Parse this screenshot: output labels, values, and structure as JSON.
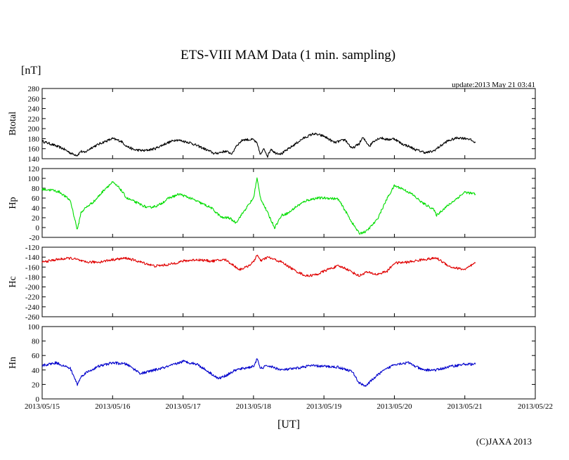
{
  "chart_data": {
    "type": "line",
    "title": "ETS-VIII MAM Data (1 min. sampling)",
    "unit_label": "[nT]",
    "update_text": "update:2013 May 21 03:41",
    "xlabel": "[UT]",
    "copyright": "(C)JAXA 2013",
    "x_range": [
      0,
      7
    ],
    "x_ticks": [
      {
        "x": 0,
        "label": "2013/05/15"
      },
      {
        "x": 1,
        "label": "2013/05/16"
      },
      {
        "x": 2,
        "label": "2013/05/17"
      },
      {
        "x": 3,
        "label": "2013/05/18"
      },
      {
        "x": 4,
        "label": "2013/05/19"
      },
      {
        "x": 5,
        "label": "2013/05/20"
      },
      {
        "x": 6,
        "label": "2013/05/21"
      },
      {
        "x": 7,
        "label": "2013/05/22"
      }
    ],
    "panels": [
      {
        "name": "Btotal",
        "color": "#000000",
        "ylim": [
          140,
          280
        ],
        "step": 20,
        "ytick_labels": [
          "140",
          "160",
          "180",
          "200",
          "220",
          "240",
          "260",
          "280"
        ],
        "x": [
          0,
          0.15,
          0.3,
          0.42,
          0.5,
          0.55,
          0.6,
          0.7,
          0.85,
          1.0,
          1.12,
          1.2,
          1.3,
          1.45,
          1.6,
          1.75,
          1.9,
          2.1,
          2.3,
          2.45,
          2.6,
          2.7,
          2.75,
          2.85,
          3.0,
          3.05,
          3.1,
          3.15,
          3.2,
          3.25,
          3.3,
          3.4,
          3.55,
          3.7,
          3.85,
          4.0,
          4.15,
          4.3,
          4.4,
          4.5,
          4.55,
          4.65,
          4.7,
          4.8,
          4.9,
          5.0,
          5.1,
          5.2,
          5.3,
          5.45,
          5.55,
          5.65,
          5.75,
          5.9,
          6.05,
          6.15
        ],
        "y": [
          175,
          168,
          160,
          150,
          147,
          155,
          152,
          162,
          172,
          180,
          175,
          165,
          158,
          156,
          160,
          170,
          178,
          172,
          160,
          150,
          155,
          150,
          165,
          178,
          178,
          170,
          148,
          160,
          145,
          160,
          152,
          150,
          165,
          180,
          190,
          185,
          172,
          178,
          160,
          170,
          182,
          165,
          175,
          182,
          178,
          180,
          170,
          165,
          158,
          152,
          155,
          165,
          175,
          182,
          180,
          172
        ]
      },
      {
        "name": "Hp",
        "color": "#00dd00",
        "ylim": [
          -20,
          120
        ],
        "step": 20,
        "ytick_labels": [
          "-20",
          "0",
          "20",
          "40",
          "60",
          "80",
          "100",
          "120"
        ],
        "x": [
          0,
          0.15,
          0.25,
          0.4,
          0.5,
          0.55,
          0.6,
          0.75,
          0.9,
          1.0,
          1.1,
          1.2,
          1.35,
          1.5,
          1.65,
          1.8,
          1.95,
          2.1,
          2.25,
          2.4,
          2.55,
          2.65,
          2.75,
          2.9,
          3.0,
          3.05,
          3.1,
          3.2,
          3.3,
          3.4,
          3.5,
          3.6,
          3.75,
          3.9,
          4.05,
          4.2,
          4.3,
          4.4,
          4.5,
          4.6,
          4.75,
          4.9,
          5.0,
          5.1,
          5.25,
          5.4,
          5.55,
          5.6,
          5.7,
          5.85,
          6.0,
          6.15
        ],
        "y": [
          78,
          76,
          72,
          55,
          -5,
          30,
          38,
          55,
          80,
          92,
          80,
          60,
          50,
          40,
          45,
          60,
          68,
          60,
          50,
          40,
          20,
          20,
          10,
          40,
          60,
          100,
          60,
          30,
          0,
          25,
          30,
          42,
          55,
          60,
          60,
          58,
          35,
          10,
          -12,
          -8,
          15,
          60,
          85,
          80,
          68,
          50,
          38,
          25,
          38,
          55,
          72,
          68
        ]
      },
      {
        "name": "Hc",
        "color": "#e00000",
        "ylim": [
          -260,
          -120
        ],
        "step": 20,
        "ytick_labels": [
          "-260",
          "-240",
          "-220",
          "-200",
          "-180",
          "-160",
          "-140",
          "-120"
        ],
        "x": [
          0,
          0.2,
          0.4,
          0.5,
          0.6,
          0.8,
          1.0,
          1.2,
          1.4,
          1.6,
          1.8,
          2.0,
          2.2,
          2.4,
          2.6,
          2.7,
          2.8,
          2.9,
          3.0,
          3.05,
          3.1,
          3.2,
          3.4,
          3.6,
          3.75,
          3.9,
          4.05,
          4.2,
          4.3,
          4.4,
          4.5,
          4.6,
          4.75,
          4.9,
          5.0,
          5.2,
          5.4,
          5.6,
          5.8,
          6.0,
          6.15
        ],
        "y": [
          -150,
          -145,
          -142,
          -145,
          -150,
          -150,
          -145,
          -142,
          -150,
          -158,
          -155,
          -148,
          -145,
          -148,
          -145,
          -155,
          -165,
          -160,
          -150,
          -135,
          -148,
          -140,
          -150,
          -168,
          -178,
          -175,
          -165,
          -158,
          -162,
          -170,
          -178,
          -170,
          -175,
          -168,
          -152,
          -150,
          -145,
          -142,
          -160,
          -165,
          -152
        ]
      },
      {
        "name": "Hn",
        "color": "#0000cc",
        "ylim": [
          0,
          100
        ],
        "step": 20,
        "ytick_labels": [
          "0",
          "20",
          "40",
          "60",
          "80",
          "100"
        ],
        "x": [
          0,
          0.2,
          0.4,
          0.5,
          0.55,
          0.6,
          0.8,
          1.0,
          1.2,
          1.4,
          1.6,
          1.8,
          2.0,
          2.2,
          2.4,
          2.5,
          2.6,
          2.75,
          3.0,
          3.05,
          3.1,
          3.2,
          3.4,
          3.6,
          3.8,
          4.0,
          4.2,
          4.4,
          4.5,
          4.6,
          4.7,
          4.8,
          5.0,
          5.2,
          5.4,
          5.6,
          5.8,
          6.0,
          6.15
        ],
        "y": [
          46,
          50,
          42,
          20,
          30,
          35,
          45,
          50,
          48,
          35,
          40,
          45,
          52,
          48,
          35,
          28,
          32,
          40,
          45,
          55,
          42,
          46,
          40,
          42,
          46,
          45,
          44,
          38,
          22,
          18,
          28,
          36,
          48,
          50,
          40,
          40,
          45,
          48,
          48
        ]
      }
    ]
  }
}
